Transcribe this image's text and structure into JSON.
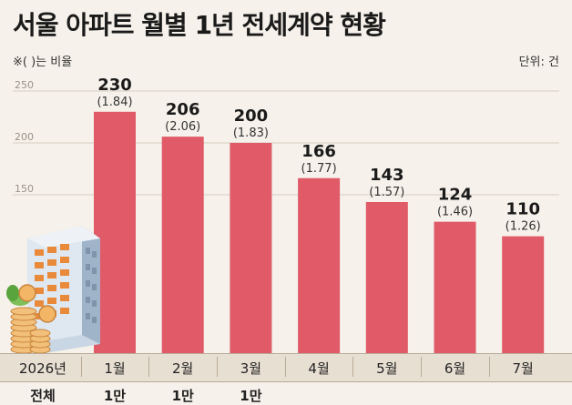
{
  "title": "서울 아파트 월별 1년 전세계약 현황",
  "note": "※( )는 비율",
  "unit": "단위: 건",
  "table": {
    "year_label": "2026년",
    "second_row_label": "전체",
    "second_row_values": [
      "1만",
      "1만",
      "1만",
      "",
      "",
      "",
      ""
    ]
  },
  "chart_data": {
    "type": "bar",
    "categories": [
      "1월",
      "2월",
      "3월",
      "4월",
      "5월",
      "6월",
      "7월"
    ],
    "values": [
      230,
      206,
      200,
      166,
      143,
      124,
      110
    ],
    "ratios": [
      "(1.84)",
      "(2.06)",
      "(1.83)",
      "(1.77)",
      "(1.57)",
      "(1.46)",
      "(1.26)"
    ],
    "yticks": [
      150,
      200,
      250
    ],
    "bar_color": "#e05a68",
    "grid": true
  }
}
